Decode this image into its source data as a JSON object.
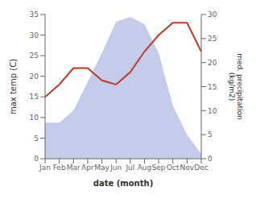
{
  "chart_data": {
    "type": "line",
    "categories": [
      "Jan",
      "Feb",
      "Mar",
      "Apr",
      "May",
      "Jun",
      "Jul",
      "Aug",
      "Sep",
      "Oct",
      "Nov",
      "Dec"
    ],
    "series": [
      {
        "type": "area",
        "axis": "y2",
        "color": "#b8c4e8",
        "values": [
          7.5,
          7.5,
          10.0,
          16.0,
          22.0,
          28.5,
          29.5,
          28.0,
          22.0,
          11.0,
          5.0,
          1.0
        ]
      },
      {
        "type": "line",
        "color": "#c0392b",
        "values": [
          15.0,
          18.0,
          22.0,
          22.0,
          19.0,
          18.0,
          21.0,
          26.0,
          30.0,
          33.0,
          33.0,
          26.0
        ]
      }
    ],
    "xlabel": "date (month)",
    "ylabel": "max temp (C)",
    "y2label": "med. precipitation\n(kg/m2)",
    "ylim": [
      0,
      35
    ],
    "yticks": [
      0,
      5,
      10,
      15,
      20,
      25,
      30,
      35
    ],
    "y2lim": [
      0,
      30
    ],
    "y2ticks": [
      0,
      5,
      10,
      15,
      20,
      25,
      30
    ],
    "grid": false
  }
}
